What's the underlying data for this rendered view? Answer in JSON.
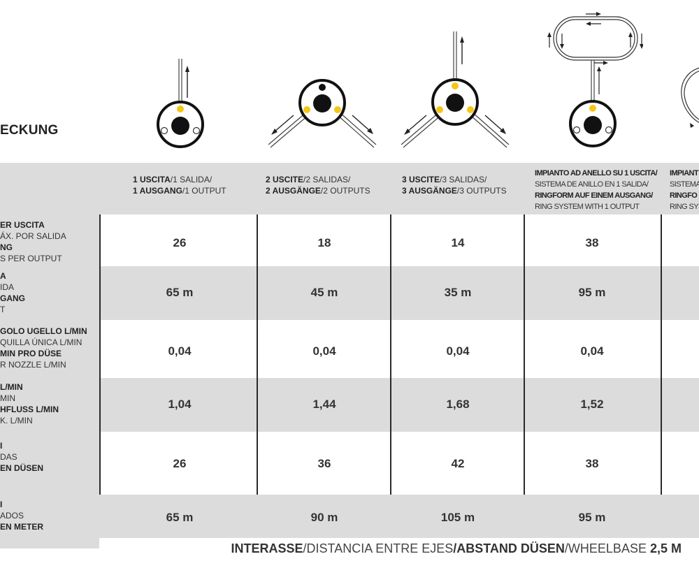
{
  "title": "ECKUNG",
  "columns": [
    {
      "line1_bold": "1 USCITA",
      "line1_rest": "/1 SALIDA/",
      "line2_bold": "1 AUSGANG",
      "line2_rest": "/1 OUTPUT"
    },
    {
      "line1_bold": "2 USCITE",
      "line1_rest": "/2 SALIDAS/",
      "line2_bold": "2 AUSGÄNGE",
      "line2_rest": "/2 OUTPUTS"
    },
    {
      "line1_bold": "3 USCITE",
      "line1_rest": "/3 SALIDAS/",
      "line2_bold": "3 AUSGÄNGE",
      "line2_rest": "/3 OUTPUTS"
    },
    {
      "line1": "IMPIANTO AD ANELLO SU 1 USCITA/",
      "line2": "SISTEMA DE ANILLO EN 1 SALIDA/",
      "line3": "RINGFORM AUF EINEM AUSGANG/",
      "line4": "RING SYSTEM WITH 1 OUTPUT"
    },
    {
      "line1": "IMPIANT",
      "line2": "SISTEMA",
      "line3": "RINGFO",
      "line4": "RING SYS"
    }
  ],
  "rows": [
    {
      "labels": [
        "ER USCITA",
        "ÁX. POR SALIDA",
        "NG",
        "S PER OUTPUT"
      ],
      "values": [
        "26",
        "18",
        "14",
        "38"
      ]
    },
    {
      "labels": [
        "A",
        "IDA",
        "GANG",
        "T"
      ],
      "values": [
        "65 m",
        "45 m",
        "35 m",
        "95 m"
      ]
    },
    {
      "labels": [
        "GOLO UGELLO L/MIN",
        "QUILLA ÚNICA L/MIN",
        "MIN PRO DÜSE",
        "R NOZZLE L/MIN"
      ],
      "values": [
        "0,04",
        "0,04",
        "0,04",
        "0,04"
      ]
    },
    {
      "labels": [
        "L/MIN",
        "MIN",
        "HFLUSS L/MIN",
        "K. L/MIN"
      ],
      "values": [
        "1,04",
        "1,44",
        "1,68",
        "1,52"
      ]
    },
    {
      "labels": [
        "I",
        "DAS",
        "EN DÜSEN",
        ""
      ],
      "values": [
        "26",
        "36",
        "42",
        "38"
      ]
    },
    {
      "labels": [
        "I",
        "ADOS",
        "EN METER",
        ""
      ],
      "values": [
        "65 m",
        "90 m",
        "105 m",
        "95 m"
      ]
    }
  ],
  "footer": {
    "p1": "INTERASSE",
    "p2": "/DISTANCIA ENTRE EJES",
    "p3": "/ABSTAND DÜSEN",
    "p4": "/WHEELBASE ",
    "p5": "2,5 M"
  },
  "colors": {
    "band": "#dcdcdc",
    "nozzle": "#f5c518",
    "line": "#2a2a2a"
  }
}
